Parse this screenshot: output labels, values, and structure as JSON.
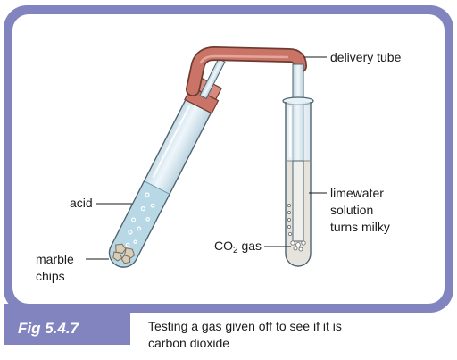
{
  "figure": {
    "tag": "Fig 5.4.7",
    "caption_line1": "Testing a gas given off to see if it is",
    "caption_line2": "carbon dioxide"
  },
  "labels": {
    "delivery_tube": "delivery tube",
    "acid": "acid",
    "marble_line1": "marble",
    "marble_line2": "chips",
    "limewater_line1": "limewater",
    "limewater_line2": "solution",
    "limewater_line3": "turns milky",
    "co2_prefix": "CO",
    "co2_sub": "2",
    "co2_suffix": " gas"
  },
  "colors": {
    "frame": "#8284bf",
    "panel_bg": "#ffffff",
    "stopper": "#c97466",
    "glass": "#d7e7ef",
    "acid_liquid": "#b9d8e6",
    "limewater": "#e6e3dc",
    "marble": "#d8cdb8"
  }
}
